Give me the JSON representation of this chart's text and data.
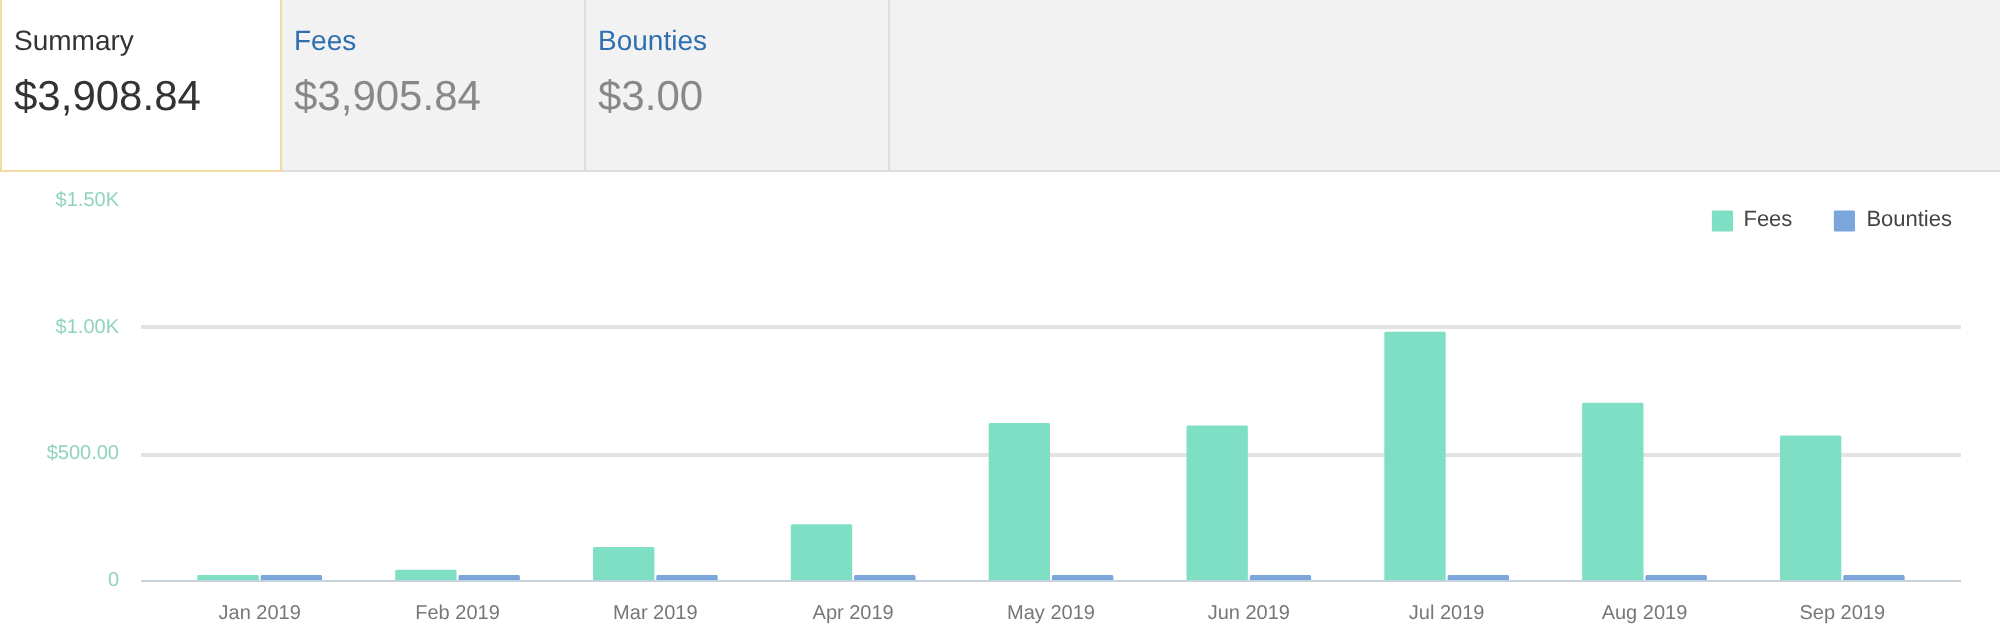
{
  "chart_data": {
    "type": "bar",
    "annotations": [
      "Summary",
      "$3,908.84",
      "Fees",
      "$3,905.84",
      "Bounties",
      "$3.00"
    ],
    "categories": [
      "Jan 2019",
      "Feb 2019",
      "Mar 2019",
      "Apr 2019",
      "May 2019",
      "Jun 2019",
      "Jul 2019",
      "Aug 2019",
      "Sep 2019"
    ],
    "series": [
      {
        "name": "Fees",
        "color": "#7fdfc4",
        "values": [
          20,
          40,
          130,
          220,
          620,
          610,
          980,
          700,
          570
        ]
      },
      {
        "name": "Bounties",
        "color": "#7aa6dc",
        "values": [
          20,
          20,
          20,
          20,
          20,
          20,
          20,
          20,
          20
        ]
      }
    ],
    "ylim": [
      0,
      1500
    ],
    "yticks": [
      {
        "value": 0,
        "label": "0"
      },
      {
        "value": 500,
        "label": "$500.00"
      },
      {
        "value": 1000,
        "label": "$1.00K"
      },
      {
        "value": 1500,
        "label": "$1.50K"
      }
    ],
    "grid": "y",
    "legend": "top right"
  }
}
